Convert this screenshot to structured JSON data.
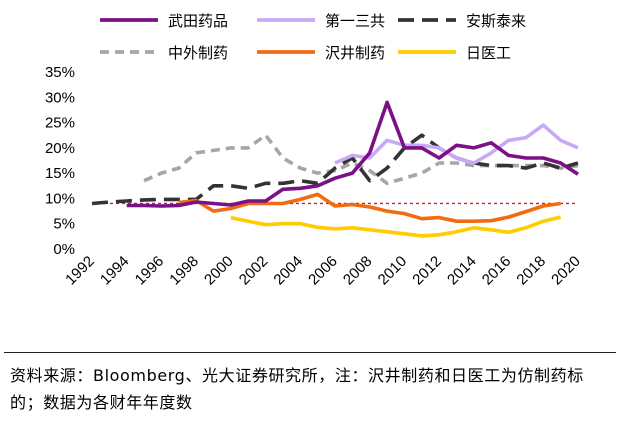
{
  "chart_data": {
    "type": "line",
    "title": "",
    "xlabel": "",
    "ylabel": "",
    "ylim": [
      0,
      35
    ],
    "yticks": [
      "0%",
      "5%",
      "10%",
      "15%",
      "20%",
      "25%",
      "30%",
      "35%"
    ],
    "xticks": [
      "1992",
      "1994",
      "1996",
      "1998",
      "2000",
      "2002",
      "2004",
      "2006",
      "2008",
      "2010",
      "2012",
      "2014",
      "2016",
      "2018",
      "2020"
    ],
    "x_start": 1992,
    "x_end": 2020,
    "legend_position": "top",
    "reference_line": 9.0,
    "series": [
      {
        "name": "武田药品",
        "color": "#7B1187",
        "dash": "solid",
        "x": [
          1994,
          1995,
          1996,
          1997,
          1998,
          1999,
          2000,
          2001,
          2002,
          2003,
          2004,
          2005,
          2006,
          2007,
          2008,
          2009,
          2010,
          2011,
          2012,
          2013,
          2014,
          2015,
          2016,
          2017,
          2018,
          2019,
          2020
        ],
        "values": [
          8.6,
          8.6,
          8.5,
          8.6,
          9.3,
          9.0,
          8.7,
          9.5,
          9.5,
          11.8,
          12.0,
          12.5,
          14.0,
          15.0,
          19.0,
          29.0,
          20.0,
          20.0,
          18.0,
          20.5,
          20.0,
          21.0,
          18.5,
          18.0,
          18.0,
          17.0,
          14.8
        ]
      },
      {
        "name": "第一三共",
        "color": "#C9A9F5",
        "dash": "solid",
        "x": [
          2006,
          2007,
          2008,
          2009,
          2010,
          2011,
          2012,
          2013,
          2014,
          2015,
          2016,
          2017,
          2018,
          2019,
          2020
        ],
        "values": [
          17.0,
          18.5,
          18.0,
          21.5,
          20.5,
          20.5,
          20.0,
          18.0,
          17.0,
          19.0,
          21.5,
          22.0,
          24.5,
          21.5,
          20.0
        ]
      },
      {
        "name": "安斯泰来",
        "color": "#333333",
        "dash": "longdash",
        "x": [
          1992,
          1993,
          1994,
          1995,
          1996,
          1997,
          1998,
          1999,
          2000,
          2001,
          2002,
          2003,
          2004,
          2005,
          2006,
          2007,
          2008,
          2009,
          2010,
          2011,
          2012,
          2013,
          2014,
          2015,
          2016,
          2017,
          2018,
          2019,
          2020
        ],
        "values": [
          9.0,
          9.3,
          9.5,
          9.7,
          9.8,
          9.8,
          9.8,
          12.5,
          12.5,
          12.0,
          13.0,
          13.0,
          13.5,
          13.0,
          16.0,
          18.0,
          13.5,
          16.0,
          20.0,
          22.5,
          20.0,
          18.0,
          17.0,
          16.5,
          16.5,
          16.0,
          17.0,
          16.0,
          17.0
        ]
      },
      {
        "name": "中外制药",
        "color": "#A6A6A6",
        "dash": "shortdash",
        "x": [
          1995,
          1996,
          1997,
          1998,
          1999,
          2000,
          2001,
          2002,
          2003,
          2004,
          2005,
          2006,
          2007,
          2008,
          2009,
          2010,
          2011,
          2012,
          2013,
          2014,
          2015,
          2016,
          2017,
          2018,
          2019,
          2020
        ],
        "values": [
          13.5,
          15.0,
          16.0,
          19.0,
          19.5,
          20.0,
          20.0,
          22.5,
          18.0,
          16.0,
          15.0,
          15.5,
          17.0,
          15.5,
          13.0,
          14.0,
          15.0,
          17.0,
          17.0,
          16.5,
          16.5,
          16.5,
          16.5,
          16.5,
          16.0,
          16.5
        ]
      },
      {
        "name": "沢井制药",
        "color": "#F26B10",
        "dash": "solid",
        "x": [
          1997,
          1998,
          1999,
          2000,
          2001,
          2002,
          2003,
          2004,
          2005,
          2006,
          2007,
          2008,
          2009,
          2010,
          2011,
          2012,
          2013,
          2014,
          2015,
          2016,
          2017,
          2018,
          2019
        ],
        "values": [
          9.2,
          9.6,
          7.5,
          8.0,
          9.0,
          9.0,
          9.0,
          9.8,
          10.8,
          8.5,
          8.8,
          8.3,
          7.5,
          7.0,
          6.0,
          6.2,
          5.5,
          5.5,
          5.6,
          6.3,
          7.4,
          8.5,
          9.0
        ]
      },
      {
        "name": "日医工",
        "color": "#FFCC00",
        "dash": "solid",
        "x": [
          2000,
          2001,
          2002,
          2003,
          2004,
          2005,
          2006,
          2007,
          2008,
          2009,
          2010,
          2011,
          2012,
          2013,
          2014,
          2015,
          2016,
          2017,
          2018,
          2019
        ],
        "values": [
          6.2,
          5.5,
          4.8,
          5.0,
          5.0,
          4.3,
          4.0,
          4.2,
          3.8,
          3.4,
          3.0,
          2.6,
          2.8,
          3.4,
          4.2,
          3.8,
          3.3,
          4.2,
          5.5,
          6.3
        ]
      }
    ]
  },
  "footer": {
    "source_note": "资料来源：Bloomberg、光大证券研究所，注：沢井制药和日医工为仿制药标的；数据为各财年年度数"
  }
}
